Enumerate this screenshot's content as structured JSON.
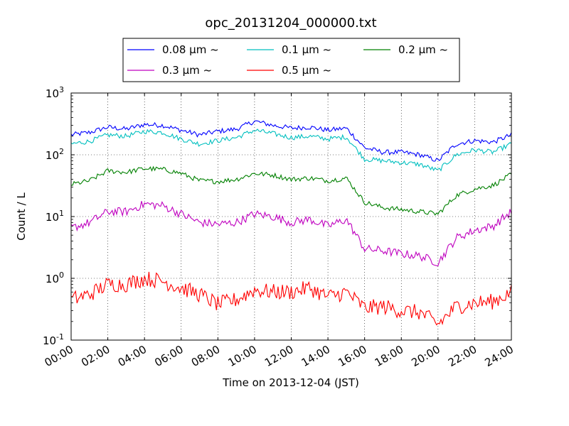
{
  "chart_data": {
    "type": "line",
    "title": "opc_20131204_000000.txt",
    "xlabel": "Time on 2013-12-04 (JST)",
    "ylabel": "Count / L",
    "yscale": "log",
    "ylim": [
      0.1,
      1000
    ],
    "xlim": [
      "00:00",
      "24:00"
    ],
    "grid": true,
    "legend_position": "top-center",
    "x_ticks": [
      "00:00",
      "02:00",
      "04:00",
      "06:00",
      "08:00",
      "10:00",
      "12:00",
      "14:00",
      "16:00",
      "18:00",
      "20:00",
      "22:00",
      "24:00"
    ],
    "y_ticks": [
      {
        "value": 0.1,
        "base": "10",
        "exp": "-1"
      },
      {
        "value": 1,
        "base": "10",
        "exp": "0"
      },
      {
        "value": 10,
        "base": "10",
        "exp": "1"
      },
      {
        "value": 100,
        "base": "10",
        "exp": "2"
      },
      {
        "value": 1000,
        "base": "10",
        "exp": "3"
      }
    ],
    "x": [
      "00:00",
      "01:00",
      "02:00",
      "03:00",
      "04:00",
      "05:00",
      "06:00",
      "07:00",
      "08:00",
      "09:00",
      "10:00",
      "11:00",
      "12:00",
      "13:00",
      "14:00",
      "15:00",
      "16:00",
      "17:00",
      "18:00",
      "19:00",
      "20:00",
      "21:00",
      "22:00",
      "23:00",
      "24:00"
    ],
    "series": [
      {
        "name": "0.08 μm ~",
        "label_prefix": "0.08 ",
        "color": "#0000ff",
        "values": [
          210,
          230,
          280,
          260,
          310,
          300,
          250,
          210,
          240,
          260,
          350,
          300,
          270,
          280,
          250,
          270,
          130,
          110,
          110,
          100,
          80,
          150,
          170,
          160,
          210
        ]
      },
      {
        "name": "0.1 μm ~",
        "label_prefix": "0.1 ",
        "color": "#00bfbf",
        "values": [
          150,
          165,
          210,
          200,
          240,
          230,
          180,
          150,
          170,
          190,
          250,
          220,
          190,
          200,
          180,
          195,
          85,
          80,
          75,
          70,
          55,
          100,
          120,
          110,
          150
        ]
      },
      {
        "name": "0.2 μm ~",
        "label_prefix": "0.2 ",
        "color": "#008000",
        "values": [
          33,
          38,
          55,
          52,
          60,
          58,
          50,
          38,
          37,
          40,
          50,
          47,
          40,
          42,
          38,
          42,
          17,
          14,
          13,
          12,
          11,
          22,
          28,
          32,
          48
        ]
      },
      {
        "name": "0.3 μm ~",
        "label_prefix": "0.3 ",
        "color": "#bf00bf",
        "values": [
          6.5,
          8,
          12,
          12,
          16,
          15,
          11,
          8,
          7.5,
          8,
          11,
          10,
          8,
          9,
          7,
          9,
          3,
          2.8,
          2.5,
          2.3,
          1.8,
          4.5,
          6,
          7,
          12
        ]
      },
      {
        "name": "0.5 μm ~",
        "label_prefix": "0.5 ",
        "color": "#ff0000",
        "values": [
          0.45,
          0.55,
          0.8,
          0.8,
          1.0,
          0.9,
          0.7,
          0.55,
          0.38,
          0.45,
          0.65,
          0.6,
          0.6,
          0.7,
          0.5,
          0.6,
          0.33,
          0.35,
          0.3,
          0.28,
          0.18,
          0.35,
          0.4,
          0.42,
          0.6
        ]
      }
    ]
  }
}
